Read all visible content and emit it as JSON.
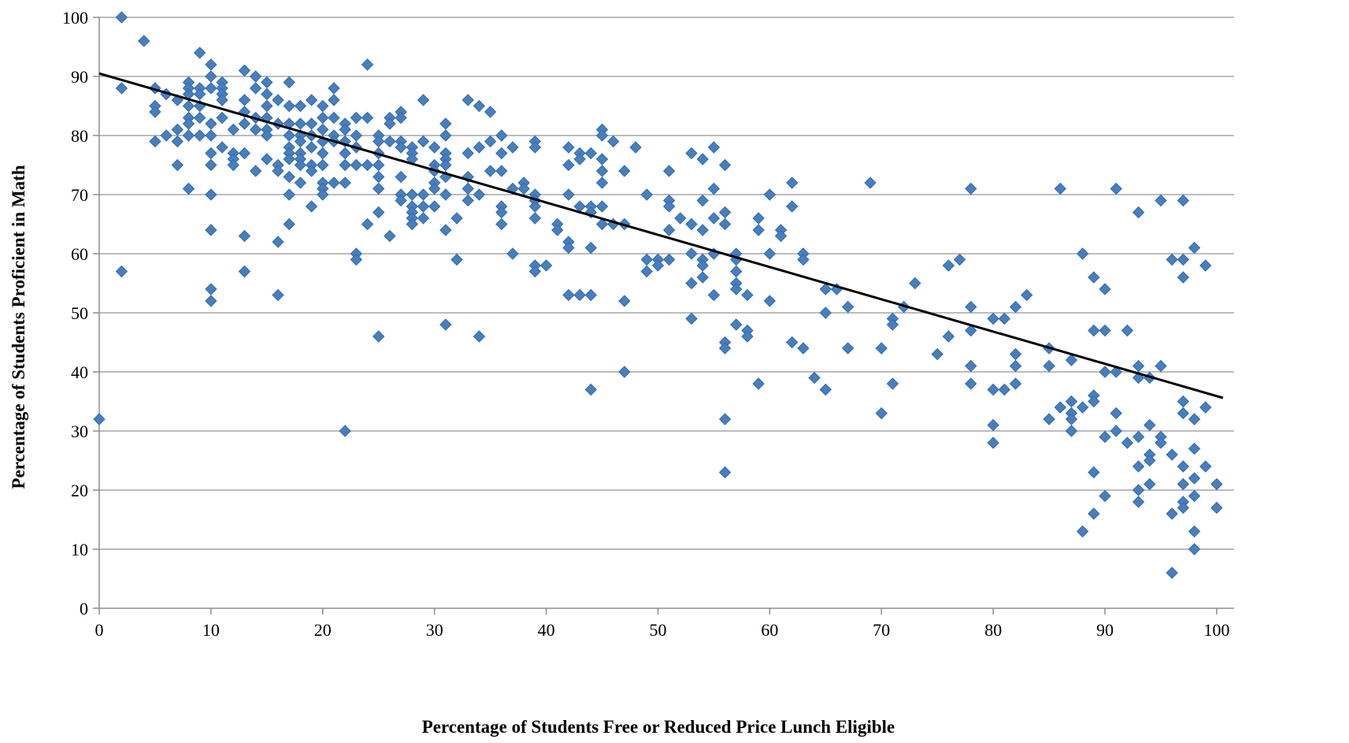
{
  "chart_data": {
    "type": "scatter",
    "title": "",
    "xlabel": "Percentage of Students Free or Reduced Price Lunch Eligible",
    "ylabel": "Percentage of Students Proficient in Math",
    "xlim": [
      0,
      100
    ],
    "ylim": [
      0,
      100
    ],
    "x_ticks": [
      "0",
      "10",
      "20",
      "30",
      "40",
      "50",
      "60",
      "70",
      "80",
      "90",
      "100"
    ],
    "y_ticks": [
      "0",
      "10",
      "20",
      "30",
      "40",
      "50",
      "60",
      "70",
      "80",
      "90",
      "100"
    ],
    "grid": "horizontal",
    "legend": "none",
    "marker": "diamond",
    "colors": {
      "points": "#4a7ebb",
      "trendline": "#000000",
      "grid": "#a6a6a6"
    },
    "trendline": {
      "x": [
        0,
        100
      ],
      "y": [
        90.5,
        36
      ]
    },
    "points": [
      [
        0,
        32
      ],
      [
        2,
        100
      ],
      [
        2,
        88
      ],
      [
        2,
        57
      ],
      [
        4,
        96
      ],
      [
        5,
        88
      ],
      [
        5,
        85
      ],
      [
        5,
        84
      ],
      [
        5,
        79
      ],
      [
        6,
        87
      ],
      [
        6,
        80
      ],
      [
        7,
        86
      ],
      [
        7,
        81
      ],
      [
        7,
        79
      ],
      [
        7,
        75
      ],
      [
        8,
        89
      ],
      [
        8,
        88
      ],
      [
        8,
        87
      ],
      [
        8,
        85
      ],
      [
        8,
        83
      ],
      [
        8,
        82
      ],
      [
        8,
        80
      ],
      [
        8,
        71
      ],
      [
        9,
        94
      ],
      [
        9,
        88
      ],
      [
        9,
        87
      ],
      [
        9,
        85
      ],
      [
        9,
        83
      ],
      [
        9,
        80
      ],
      [
        10,
        92
      ],
      [
        10,
        90
      ],
      [
        10,
        88
      ],
      [
        10,
        82
      ],
      [
        10,
        80
      ],
      [
        10,
        77
      ],
      [
        10,
        75
      ],
      [
        10,
        70
      ],
      [
        10,
        64
      ],
      [
        10,
        54
      ],
      [
        10,
        52
      ],
      [
        11,
        89
      ],
      [
        11,
        88
      ],
      [
        11,
        87
      ],
      [
        11,
        86
      ],
      [
        11,
        83
      ],
      [
        11,
        78
      ],
      [
        12,
        81
      ],
      [
        12,
        77
      ],
      [
        12,
        76
      ],
      [
        12,
        75
      ],
      [
        13,
        91
      ],
      [
        13,
        86
      ],
      [
        13,
        84
      ],
      [
        13,
        82
      ],
      [
        13,
        77
      ],
      [
        13,
        63
      ],
      [
        13,
        57
      ],
      [
        14,
        90
      ],
      [
        14,
        88
      ],
      [
        14,
        83
      ],
      [
        14,
        81
      ],
      [
        14,
        74
      ],
      [
        15,
        89
      ],
      [
        15,
        87
      ],
      [
        15,
        85
      ],
      [
        15,
        83
      ],
      [
        15,
        81
      ],
      [
        15,
        80
      ],
      [
        15,
        76
      ],
      [
        16,
        86
      ],
      [
        16,
        82
      ],
      [
        16,
        75
      ],
      [
        16,
        74
      ],
      [
        16,
        62
      ],
      [
        16,
        53
      ],
      [
        17,
        89
      ],
      [
        17,
        85
      ],
      [
        17,
        82
      ],
      [
        17,
        80
      ],
      [
        17,
        78
      ],
      [
        17,
        77
      ],
      [
        17,
        76
      ],
      [
        17,
        73
      ],
      [
        17,
        70
      ],
      [
        17,
        65
      ],
      [
        18,
        85
      ],
      [
        18,
        82
      ],
      [
        18,
        80
      ],
      [
        18,
        79
      ],
      [
        18,
        77
      ],
      [
        18,
        76
      ],
      [
        18,
        75
      ],
      [
        18,
        72
      ],
      [
        19,
        86
      ],
      [
        19,
        82
      ],
      [
        19,
        80
      ],
      [
        19,
        78
      ],
      [
        19,
        75
      ],
      [
        19,
        74
      ],
      [
        19,
        68
      ],
      [
        20,
        85
      ],
      [
        20,
        83
      ],
      [
        20,
        81
      ],
      [
        20,
        79
      ],
      [
        20,
        77
      ],
      [
        20,
        75
      ],
      [
        20,
        72
      ],
      [
        20,
        71
      ],
      [
        20,
        70
      ],
      [
        21,
        88
      ],
      [
        21,
        86
      ],
      [
        21,
        83
      ],
      [
        21,
        80
      ],
      [
        21,
        79
      ],
      [
        21,
        72
      ],
      [
        22,
        82
      ],
      [
        22,
        81
      ],
      [
        22,
        79
      ],
      [
        22,
        77
      ],
      [
        22,
        75
      ],
      [
        22,
        72
      ],
      [
        22,
        30
      ],
      [
        23,
        83
      ],
      [
        23,
        80
      ],
      [
        23,
        78
      ],
      [
        23,
        75
      ],
      [
        23,
        60
      ],
      [
        23,
        59
      ],
      [
        24,
        92
      ],
      [
        24,
        83
      ],
      [
        24,
        75
      ],
      [
        24,
        65
      ],
      [
        25,
        80
      ],
      [
        25,
        79
      ],
      [
        25,
        77
      ],
      [
        25,
        75
      ],
      [
        25,
        73
      ],
      [
        25,
        71
      ],
      [
        25,
        67
      ],
      [
        25,
        46
      ],
      [
        26,
        83
      ],
      [
        26,
        82
      ],
      [
        26,
        79
      ],
      [
        26,
        63
      ],
      [
        27,
        84
      ],
      [
        27,
        83
      ],
      [
        27,
        79
      ],
      [
        27,
        78
      ],
      [
        27,
        73
      ],
      [
        27,
        70
      ],
      [
        27,
        69
      ],
      [
        28,
        78
      ],
      [
        28,
        77
      ],
      [
        28,
        76
      ],
      [
        28,
        70
      ],
      [
        28,
        68
      ],
      [
        28,
        67
      ],
      [
        28,
        66
      ],
      [
        28,
        65
      ],
      [
        29,
        86
      ],
      [
        29,
        79
      ],
      [
        29,
        70
      ],
      [
        29,
        68
      ],
      [
        29,
        66
      ],
      [
        30,
        78
      ],
      [
        30,
        75
      ],
      [
        30,
        74
      ],
      [
        30,
        72
      ],
      [
        30,
        71
      ],
      [
        30,
        68
      ],
      [
        31,
        82
      ],
      [
        31,
        80
      ],
      [
        31,
        77
      ],
      [
        31,
        76
      ],
      [
        31,
        75
      ],
      [
        31,
        73
      ],
      [
        31,
        70
      ],
      [
        31,
        64
      ],
      [
        31,
        48
      ],
      [
        32,
        66
      ],
      [
        32,
        59
      ],
      [
        33,
        86
      ],
      [
        33,
        77
      ],
      [
        33,
        73
      ],
      [
        33,
        71
      ],
      [
        33,
        69
      ],
      [
        34,
        85
      ],
      [
        34,
        78
      ],
      [
        34,
        70
      ],
      [
        34,
        46
      ],
      [
        35,
        84
      ],
      [
        35,
        79
      ],
      [
        35,
        74
      ],
      [
        36,
        80
      ],
      [
        36,
        77
      ],
      [
        36,
        74
      ],
      [
        36,
        68
      ],
      [
        36,
        67
      ],
      [
        36,
        65
      ],
      [
        37,
        78
      ],
      [
        37,
        71
      ],
      [
        37,
        60
      ],
      [
        38,
        72
      ],
      [
        38,
        71
      ],
      [
        39,
        79
      ],
      [
        39,
        78
      ],
      [
        39,
        70
      ],
      [
        39,
        69
      ],
      [
        39,
        68
      ],
      [
        39,
        66
      ],
      [
        39,
        58
      ],
      [
        39,
        57
      ],
      [
        40,
        58
      ],
      [
        41,
        65
      ],
      [
        41,
        64
      ],
      [
        42,
        78
      ],
      [
        42,
        75
      ],
      [
        42,
        70
      ],
      [
        42,
        62
      ],
      [
        42,
        61
      ],
      [
        42,
        53
      ],
      [
        43,
        77
      ],
      [
        43,
        76
      ],
      [
        43,
        68
      ],
      [
        43,
        53
      ],
      [
        44,
        77
      ],
      [
        44,
        68
      ],
      [
        44,
        67
      ],
      [
        44,
        61
      ],
      [
        44,
        53
      ],
      [
        44,
        37
      ],
      [
        45,
        81
      ],
      [
        45,
        80
      ],
      [
        45,
        76
      ],
      [
        45,
        74
      ],
      [
        45,
        72
      ],
      [
        45,
        68
      ],
      [
        45,
        65
      ],
      [
        46,
        79
      ],
      [
        46,
        65
      ],
      [
        47,
        74
      ],
      [
        47,
        65
      ],
      [
        47,
        52
      ],
      [
        47,
        40
      ],
      [
        48,
        78
      ],
      [
        49,
        70
      ],
      [
        49,
        59
      ],
      [
        49,
        57
      ],
      [
        50,
        59
      ],
      [
        50,
        58
      ],
      [
        51,
        74
      ],
      [
        51,
        69
      ],
      [
        51,
        68
      ],
      [
        51,
        64
      ],
      [
        51,
        59
      ],
      [
        52,
        66
      ],
      [
        53,
        77
      ],
      [
        53,
        65
      ],
      [
        53,
        60
      ],
      [
        53,
        55
      ],
      [
        53,
        49
      ],
      [
        54,
        76
      ],
      [
        54,
        69
      ],
      [
        54,
        64
      ],
      [
        54,
        59
      ],
      [
        54,
        58
      ],
      [
        54,
        56
      ],
      [
        55,
        78
      ],
      [
        55,
        71
      ],
      [
        55,
        66
      ],
      [
        55,
        60
      ],
      [
        55,
        53
      ],
      [
        56,
        75
      ],
      [
        56,
        67
      ],
      [
        56,
        65
      ],
      [
        56,
        45
      ],
      [
        56,
        44
      ],
      [
        56,
        32
      ],
      [
        56,
        23
      ],
      [
        57,
        60
      ],
      [
        57,
        59
      ],
      [
        57,
        57
      ],
      [
        57,
        55
      ],
      [
        57,
        54
      ],
      [
        57,
        48
      ],
      [
        58,
        53
      ],
      [
        58,
        47
      ],
      [
        58,
        46
      ],
      [
        59,
        66
      ],
      [
        59,
        64
      ],
      [
        59,
        38
      ],
      [
        60,
        70
      ],
      [
        60,
        60
      ],
      [
        60,
        52
      ],
      [
        61,
        64
      ],
      [
        61,
        63
      ],
      [
        62,
        72
      ],
      [
        62,
        68
      ],
      [
        62,
        45
      ],
      [
        63,
        60
      ],
      [
        63,
        59
      ],
      [
        63,
        44
      ],
      [
        64,
        39
      ],
      [
        65,
        54
      ],
      [
        65,
        50
      ],
      [
        65,
        37
      ],
      [
        66,
        54
      ],
      [
        67,
        51
      ],
      [
        67,
        44
      ],
      [
        69,
        72
      ],
      [
        70,
        44
      ],
      [
        70,
        33
      ],
      [
        71,
        49
      ],
      [
        71,
        48
      ],
      [
        71,
        38
      ],
      [
        72,
        51
      ],
      [
        73,
        55
      ],
      [
        75,
        43
      ],
      [
        76,
        58
      ],
      [
        76,
        46
      ],
      [
        77,
        59
      ],
      [
        78,
        71
      ],
      [
        78,
        51
      ],
      [
        78,
        47
      ],
      [
        78,
        41
      ],
      [
        78,
        38
      ],
      [
        80,
        49
      ],
      [
        80,
        37
      ],
      [
        80,
        31
      ],
      [
        80,
        28
      ],
      [
        81,
        49
      ],
      [
        81,
        37
      ],
      [
        82,
        51
      ],
      [
        82,
        43
      ],
      [
        82,
        41
      ],
      [
        82,
        38
      ],
      [
        83,
        53
      ],
      [
        85,
        44
      ],
      [
        85,
        41
      ],
      [
        85,
        32
      ],
      [
        86,
        71
      ],
      [
        86,
        34
      ],
      [
        87,
        42
      ],
      [
        87,
        35
      ],
      [
        87,
        33
      ],
      [
        87,
        32
      ],
      [
        87,
        30
      ],
      [
        88,
        60
      ],
      [
        88,
        34
      ],
      [
        88,
        13
      ],
      [
        89,
        56
      ],
      [
        89,
        47
      ],
      [
        89,
        36
      ],
      [
        89,
        35
      ],
      [
        89,
        23
      ],
      [
        89,
        16
      ],
      [
        90,
        54
      ],
      [
        90,
        47
      ],
      [
        90,
        40
      ],
      [
        90,
        29
      ],
      [
        90,
        19
      ],
      [
        91,
        71
      ],
      [
        91,
        40
      ],
      [
        91,
        33
      ],
      [
        91,
        30
      ],
      [
        92,
        47
      ],
      [
        92,
        28
      ],
      [
        93,
        67
      ],
      [
        93,
        41
      ],
      [
        93,
        39
      ],
      [
        93,
        29
      ],
      [
        93,
        24
      ],
      [
        93,
        20
      ],
      [
        93,
        18
      ],
      [
        94,
        39
      ],
      [
        94,
        31
      ],
      [
        94,
        26
      ],
      [
        94,
        25
      ],
      [
        94,
        21
      ],
      [
        95,
        69
      ],
      [
        95,
        41
      ],
      [
        95,
        29
      ],
      [
        95,
        28
      ],
      [
        96,
        59
      ],
      [
        96,
        26
      ],
      [
        96,
        16
      ],
      [
        96,
        6
      ],
      [
        97,
        69
      ],
      [
        97,
        59
      ],
      [
        97,
        56
      ],
      [
        97,
        35
      ],
      [
        97,
        33
      ],
      [
        97,
        24
      ],
      [
        97,
        21
      ],
      [
        97,
        18
      ],
      [
        97,
        17
      ],
      [
        98,
        61
      ],
      [
        98,
        32
      ],
      [
        98,
        27
      ],
      [
        98,
        22
      ],
      [
        98,
        19
      ],
      [
        98,
        13
      ],
      [
        98,
        10
      ],
      [
        99,
        58
      ],
      [
        99,
        34
      ],
      [
        99,
        24
      ],
      [
        100,
        21
      ],
      [
        100,
        17
      ]
    ]
  }
}
